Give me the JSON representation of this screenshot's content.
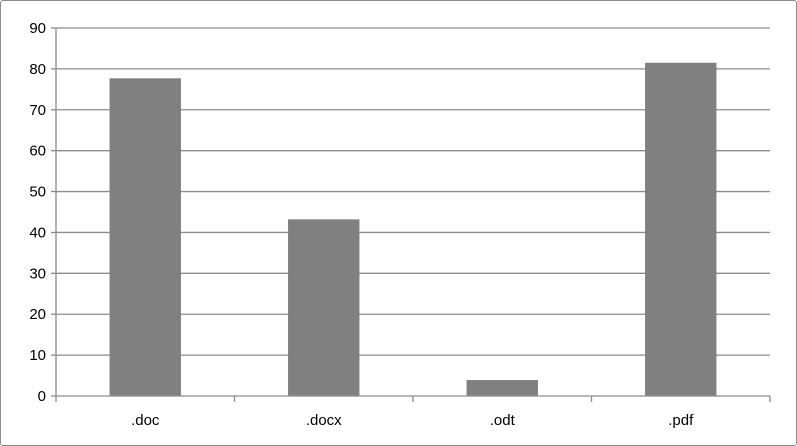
{
  "chart_data": {
    "type": "bar",
    "categories": [
      ".doc",
      ".docx",
      ".odt",
      ".pdf"
    ],
    "values": [
      77.7,
      43.2,
      3.9,
      81.5
    ],
    "title": "",
    "xlabel": "",
    "ylabel": "",
    "ylim": [
      0,
      90
    ],
    "yticks": [
      0,
      10,
      20,
      30,
      40,
      50,
      60,
      70,
      80,
      90
    ],
    "grid": true,
    "legend": "none",
    "bar_color": "#808080",
    "grid_color": "#8c8c8c",
    "axis_color": "#8c8c8c"
  }
}
